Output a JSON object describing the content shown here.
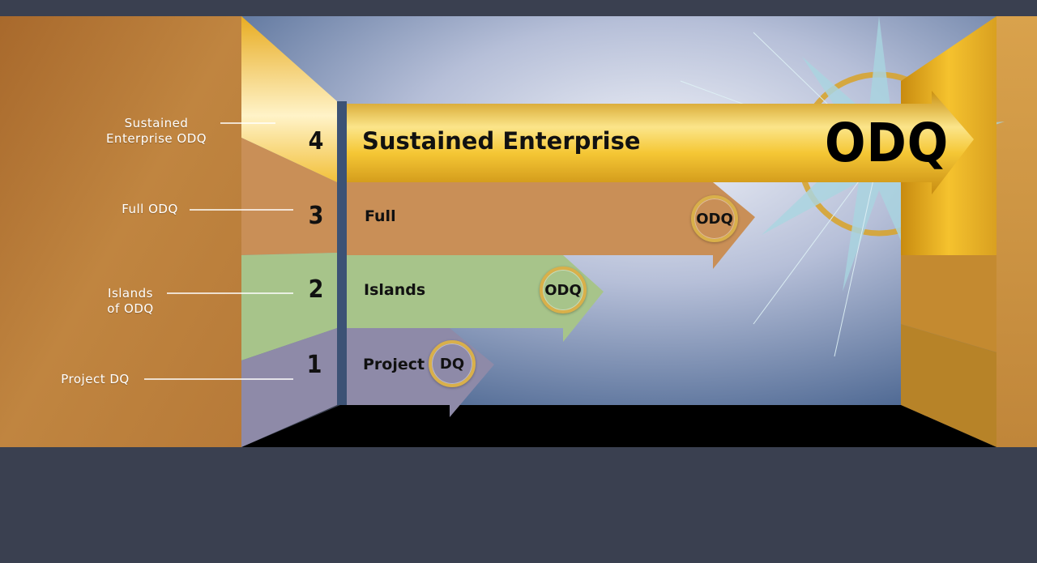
{
  "levels": [
    {
      "number": "4",
      "side_label": "Sustained\nEnterprise ODQ",
      "band_label": "Sustained Enterprise",
      "badge": "ODQ"
    },
    {
      "number": "3",
      "side_label": "Full ODQ",
      "band_label": "Full",
      "badge": "ODQ"
    },
    {
      "number": "2",
      "side_label": "Islands\nof ODQ",
      "band_label": "Islands",
      "badge": "ODQ"
    },
    {
      "number": "1",
      "side_label": "Project DQ",
      "band_label": "Project",
      "badge": "DQ"
    }
  ],
  "colors": {
    "background": "#3a4050",
    "wall": "#b97a36",
    "gold": "#f2c233",
    "copper": "#c98f57",
    "green": "#a7c48a",
    "lavender": "#8e8aa8",
    "floor": "#000000"
  }
}
